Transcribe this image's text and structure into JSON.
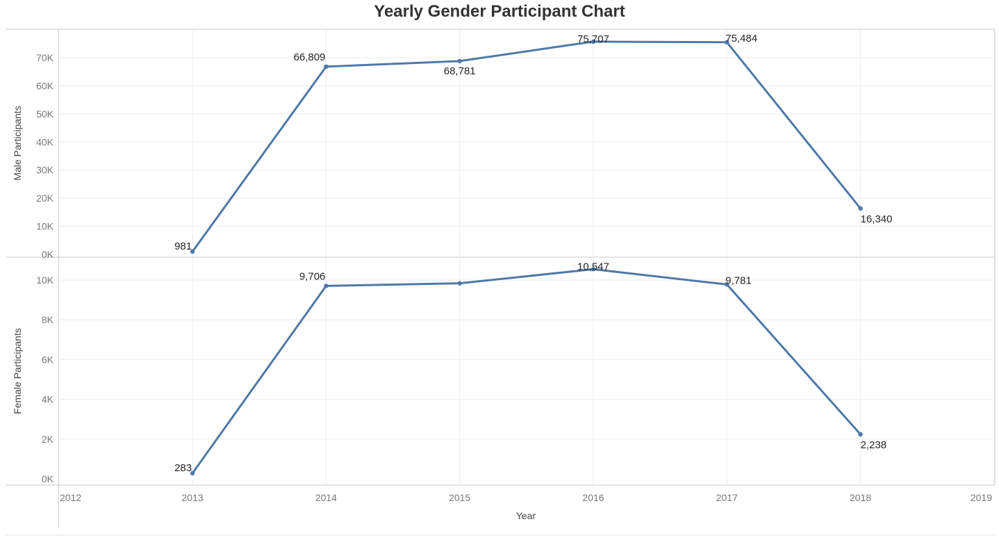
{
  "chart_data": {
    "type": "line",
    "title": "Yearly Gender Participant Chart",
    "xlabel": "Year",
    "x": [
      2013,
      2014,
      2015,
      2016,
      2017,
      2018
    ],
    "xlim": [
      2012,
      2019
    ],
    "x_ticks": [
      "2012",
      "2013",
      "2014",
      "2015",
      "2016",
      "2017",
      "2018",
      "2019"
    ],
    "grid": true,
    "panels": [
      {
        "ylabel": "Male Participants",
        "ylim": [
          0,
          78000
        ],
        "y_ticks": [
          0,
          10000,
          20000,
          30000,
          40000,
          50000,
          60000,
          70000
        ],
        "y_tick_labels": [
          "0K",
          "10K",
          "20K",
          "30K",
          "40K",
          "50K",
          "60K",
          "70K"
        ],
        "series": [
          {
            "values": [
              981,
              66809,
              68781,
              75707,
              75484,
              16340
            ],
            "labels": [
              "981",
              "66,809",
              "68,781",
              "75,707",
              "75,484",
              "16,340"
            ],
            "label_positions": [
              "left",
              "above-left",
              "below",
              "above",
              "above-right",
              "below-right"
            ]
          }
        ]
      },
      {
        "ylabel": "Female Participants",
        "ylim": [
          0,
          11000
        ],
        "y_ticks": [
          0,
          2000,
          4000,
          6000,
          8000,
          10000
        ],
        "y_tick_labels": [
          "0K",
          "2K",
          "4K",
          "6K",
          "8K",
          "10K"
        ],
        "series": [
          {
            "values": [
              283,
              9706,
              9840,
              10547,
              9781,
              2238
            ],
            "labels": [
              "283",
              "9,706",
              "",
              "10,547",
              "9,781",
              "2,238"
            ],
            "label_positions": [
              "left",
              "above-left",
              "none",
              "above",
              "above-right",
              "below-right"
            ]
          }
        ]
      }
    ],
    "colors": {
      "line": "#4e79a7",
      "grid": "#ececec",
      "axis": "#c8c8c8",
      "tick_text": "#777777",
      "label_text": "#222222",
      "axis_title": "#444444"
    }
  }
}
